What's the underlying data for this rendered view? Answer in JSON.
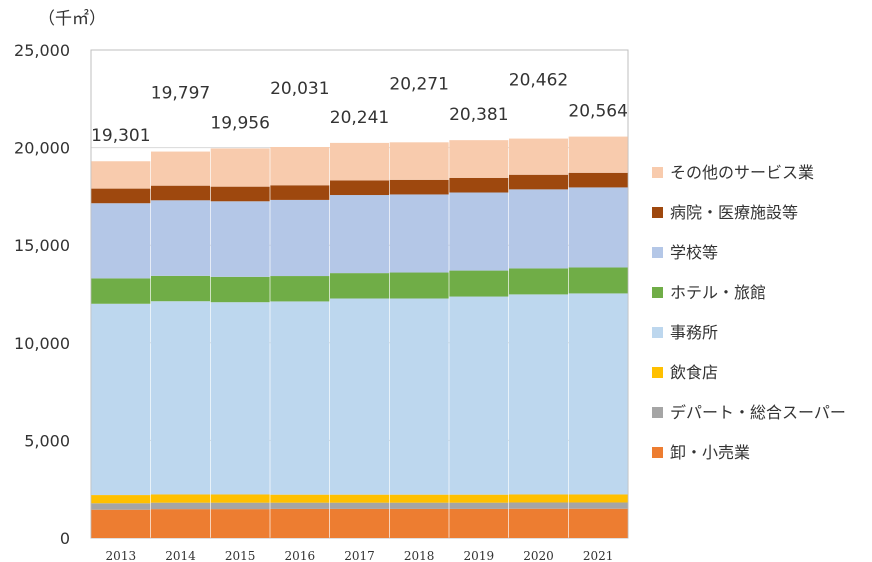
{
  "chart_data": {
    "type": "stacked-bar",
    "unit_label": "（千㎡）",
    "categories": [
      "2013",
      "2014",
      "2015",
      "2016",
      "2017",
      "2018",
      "2019",
      "2020",
      "2021"
    ],
    "yticks": [
      "0",
      "5,000",
      "10,000",
      "15,000",
      "20,000",
      "25,000"
    ],
    "ylim": [
      0,
      25000
    ],
    "totals": [
      "19,301",
      "19,797",
      "19,956",
      "20,031",
      "20,241",
      "20,271",
      "20,381",
      "20,462",
      "20,564"
    ],
    "total_values": [
      19301,
      19797,
      19956,
      20031,
      20241,
      20271,
      20381,
      20462,
      20564
    ],
    "series": [
      {
        "name": "卸・小売業",
        "color": "#ed7d31",
        "values": [
          1450,
          1480,
          1480,
          1490,
          1490,
          1490,
          1490,
          1500,
          1500
        ]
      },
      {
        "name": "デパート・総合スーパー",
        "color": "#a5a5a5",
        "values": [
          330,
          330,
          330,
          320,
          320,
          320,
          320,
          320,
          320
        ]
      },
      {
        "name": "飲食店",
        "color": "#ffc000",
        "values": [
          420,
          420,
          420,
          410,
          410,
          410,
          410,
          410,
          410
        ]
      },
      {
        "name": "事務所",
        "color": "#bdd7ee",
        "values": [
          9800,
          9900,
          9850,
          9900,
          10050,
          10050,
          10150,
          10250,
          10300
        ]
      },
      {
        "name": "ホテル・旅館",
        "color": "#70ad47",
        "values": [
          1300,
          1300,
          1300,
          1300,
          1300,
          1330,
          1330,
          1330,
          1330
        ]
      },
      {
        "name": "学校等",
        "color": "#b4c7e7",
        "values": [
          3850,
          3870,
          3870,
          3900,
          4000,
          4000,
          4000,
          4050,
          4100
        ]
      },
      {
        "name": "病院・医療施設等",
        "color": "#9e480e",
        "values": [
          750,
          750,
          750,
          750,
          750,
          750,
          750,
          750,
          750
        ]
      },
      {
        "name": "その他のサービス業",
        "color": "#f8cbad",
        "values": [
          1401,
          1747,
          1956,
          1961,
          1921,
          1921,
          1931,
          1852,
          1854
        ]
      }
    ],
    "legend_position": "right",
    "grid": true
  }
}
